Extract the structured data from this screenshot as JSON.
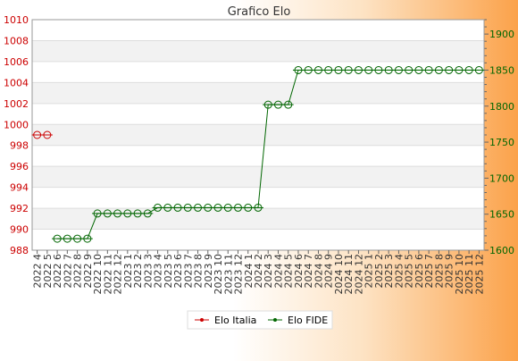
{
  "chart_data": {
    "type": "line",
    "title": "Grafico Elo",
    "categories": [
      "2022 4",
      "2022 5",
      "2022 6",
      "2022 7",
      "2022 8",
      "2022 9",
      "2022 10",
      "2022 11",
      "2022 12",
      "2023 1",
      "2023 2",
      "2023 3",
      "2023 4",
      "2023 5",
      "2023 6",
      "2023 7",
      "2023 8",
      "2023 9",
      "2023 10",
      "2023 11",
      "2023 12",
      "2024 1",
      "2024 2",
      "2024 3",
      "2024 4",
      "2024 5",
      "2024 6",
      "2024 7",
      "2024 8",
      "2024 9",
      "2024 10",
      "2024 11",
      "2024 12",
      "2025 1",
      "2025 2",
      "2025 3",
      "2025 4",
      "2025 5",
      "2025 6",
      "2025 7",
      "2025 8",
      "2025 9",
      "2025 10",
      "2025 11",
      "2025 12"
    ],
    "y_left": {
      "label": "",
      "ylim": [
        988,
        1010
      ],
      "ticks": [
        988,
        990,
        992,
        994,
        996,
        998,
        1000,
        1002,
        1004,
        1006,
        1008,
        1010
      ],
      "color": "#cc0000"
    },
    "y_right": {
      "label": "",
      "ylim": [
        1600,
        1920
      ],
      "ticks": [
        1600,
        1650,
        1700,
        1750,
        1800,
        1850,
        1900
      ],
      "color": "#006600"
    },
    "grid": true,
    "legend_position": "bottom-center",
    "series": [
      {
        "name": "Elo Italia",
        "axis": "left",
        "color": "#cc0000",
        "values": [
          999,
          999,
          null,
          null,
          null,
          null,
          null,
          null,
          null,
          null,
          null,
          null,
          null,
          null,
          null,
          null,
          null,
          null,
          null,
          null,
          null,
          null,
          null,
          null,
          null,
          null,
          null,
          null,
          null,
          null,
          null,
          null,
          null,
          null,
          null,
          null,
          null,
          null,
          null,
          null,
          null,
          null,
          null,
          null,
          null
        ]
      },
      {
        "name": "Elo FIDE",
        "axis": "right",
        "color": "#006600",
        "values": [
          null,
          null,
          1616,
          1616,
          1616,
          1616,
          1651,
          1651,
          1651,
          1651,
          1651,
          1651,
          1659,
          1659,
          1659,
          1659,
          1659,
          1659,
          1659,
          1659,
          1659,
          1659,
          1659,
          1802,
          1802,
          1802,
          1850,
          1850,
          1850,
          1850,
          1850,
          1850,
          1850,
          1850,
          1850,
          1850,
          1850,
          1850,
          1850,
          1850,
          1850,
          1850,
          1850,
          1850,
          1850
        ]
      }
    ]
  }
}
